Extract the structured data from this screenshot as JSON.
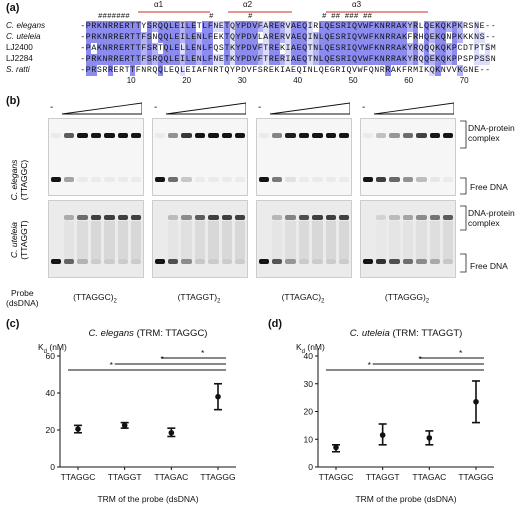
{
  "panel_a": {
    "label": "(a)",
    "hash_marks": "#######",
    "hash_marks_2": "#",
    "hash_marks_3": "#",
    "hash_marks_4": "# ## ### ##",
    "helices": [
      "α1",
      "α2",
      "α3"
    ],
    "rows": [
      {
        "name": "C. elegans",
        "italic": true,
        "seq": "-PRKNRRERTTYSRQQLEILETLFNETQYPDVFARERVAEQIRLQESRIQVWFKNRRAKYRLQEKQKPKRSNE--"
      },
      {
        "name": "C. uteleia",
        "italic": true,
        "seq": "-PRKNRRERTTFSNQQLEILENLFEKTQYPDVLARERVAEQINLQESRIQVWFKNRRAKFRHQEKQNPKKKNS--"
      },
      {
        "name": "LJ2400",
        "italic": false,
        "seq": "-PAKNRRERTTFSRTQLELLENLFQSTKYPDVFTREKIAEQTNLQESRIQVWFKNRRAKYRQQQKQKPCDTPTSM"
      },
      {
        "name": "LJ2284",
        "italic": false,
        "seq": "-PRKNRRERTTFSRQQLEILENLFNETKYPDVFTRERIAEQTNLQESRIQVWFKNRRAKYRQQEKQKPPSPPSSN"
      },
      {
        "name": "S. ratti",
        "italic": true,
        "seq": "-PRSRRERTTFNRQQLEQLEIAFNRTQYPDVFSREKIAEQINLQEGRIQVWFQNRRAKFRMIKQKNVVKGNE--"
      }
    ],
    "ticks": [
      "10",
      "20",
      "30",
      "40",
      "50",
      "60",
      "70"
    ]
  },
  "panel_b": {
    "label": "(b)",
    "row1_label_line1": "C. elegans",
    "row1_label_line2": "(TTAGGC)",
    "row2_label_line1": "C. uteleia",
    "row2_label_line2": "(TTAGGT)",
    "complex_label_1": "DNA-protein",
    "complex_label_2": "complex",
    "free_label": "Free DNA",
    "probe_label_1": "Probe",
    "probe_label_2": "(dsDNA)",
    "minus": "-",
    "probes": [
      "(TTAGGC)",
      "(TTAGGT)",
      "(TTAGAC)",
      "(TTAGGG)"
    ],
    "subscript": "2"
  },
  "panel_c": {
    "label": "(c)",
    "chart_data": {
      "type": "scatter",
      "title": "C. elegans (TRM: TTAGGC)",
      "ylabel": "Kd (nM)",
      "xlabel": "TRM of the probe (dsDNA)",
      "categories": [
        "TTAGGC",
        "TTAGGT",
        "TTAGAC",
        "TTAGGG"
      ],
      "values": [
        20.5,
        22.5,
        18.5,
        38
      ],
      "err_low": [
        18.5,
        21,
        16.5,
        31
      ],
      "err_high": [
        22.5,
        24,
        21,
        45
      ],
      "ylim": [
        0,
        60
      ],
      "yticks": [
        "0",
        "20",
        "40",
        "60"
      ],
      "significance": [
        "*",
        "*",
        "*"
      ]
    }
  },
  "panel_d": {
    "label": "(d)",
    "chart_data": {
      "type": "scatter",
      "title": "C. uteleia (TRM: TTAGGT)",
      "ylabel": "Kd (nM)",
      "xlabel": "TRM of the probe (dsDNA)",
      "categories": [
        "TTAGGC",
        "TTAGGT",
        "TTAGAC",
        "TTAGGG"
      ],
      "values": [
        7,
        11.5,
        10.5,
        23.5
      ],
      "err_low": [
        5.5,
        8,
        8,
        16
      ],
      "err_high": [
        8,
        15.5,
        13,
        31
      ],
      "ylim": [
        0,
        40
      ],
      "yticks": [
        "0",
        "10",
        "20",
        "30",
        "40"
      ],
      "significance": [
        "*",
        "*",
        "*"
      ]
    }
  }
}
